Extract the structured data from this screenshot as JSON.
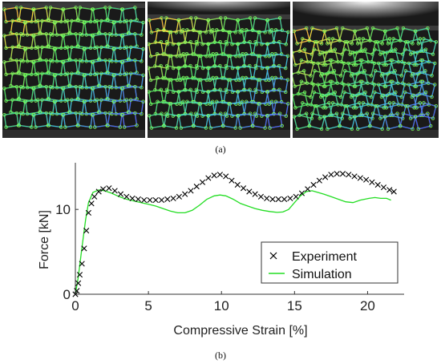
{
  "figure": {
    "caption_a": "(a)",
    "caption_b": "(b)",
    "photo_icons": [
      "lattice-photo-initial",
      "lattice-photo-mid",
      "lattice-photo-deformed"
    ]
  },
  "chart_data": {
    "type": "line",
    "xlabel": "Compressive Strain [%]",
    "ylabel": "Force [kN]",
    "xlim": [
      0,
      22.5
    ],
    "ylim": [
      0,
      15.5
    ],
    "xticks": [
      0,
      5,
      10,
      15,
      20
    ],
    "yticks": [
      0,
      10
    ],
    "grid": false,
    "legend": "bottom-right",
    "series": [
      {
        "name": "Experiment",
        "marker": "x",
        "color": "#000000",
        "points": [
          [
            0.0,
            0.0
          ],
          [
            0.1,
            0.4
          ],
          [
            0.2,
            1.3
          ],
          [
            0.3,
            2.3
          ],
          [
            0.45,
            3.6
          ],
          [
            0.6,
            5.4
          ],
          [
            0.75,
            7.5
          ],
          [
            0.9,
            9.6
          ],
          [
            1.1,
            10.7
          ],
          [
            1.3,
            11.5
          ],
          [
            1.6,
            12.1
          ],
          [
            1.9,
            12.4
          ],
          [
            2.3,
            12.5
          ],
          [
            2.7,
            12.2
          ],
          [
            3.1,
            11.8
          ],
          [
            3.5,
            11.5
          ],
          [
            3.9,
            11.3
          ],
          [
            4.3,
            11.2
          ],
          [
            4.7,
            11.1
          ],
          [
            5.1,
            11.1
          ],
          [
            5.5,
            11.1
          ],
          [
            5.9,
            11.1
          ],
          [
            6.3,
            11.2
          ],
          [
            6.7,
            11.3
          ],
          [
            7.1,
            11.5
          ],
          [
            7.5,
            11.8
          ],
          [
            7.9,
            12.2
          ],
          [
            8.3,
            12.7
          ],
          [
            8.7,
            13.2
          ],
          [
            9.1,
            13.7
          ],
          [
            9.5,
            14.0
          ],
          [
            9.9,
            14.1
          ],
          [
            10.3,
            13.9
          ],
          [
            10.7,
            13.4
          ],
          [
            11.1,
            12.9
          ],
          [
            11.5,
            12.5
          ],
          [
            11.9,
            12.1
          ],
          [
            12.3,
            11.8
          ],
          [
            12.7,
            11.5
          ],
          [
            13.1,
            11.3
          ],
          [
            13.5,
            11.2
          ],
          [
            13.9,
            11.2
          ],
          [
            14.3,
            11.2
          ],
          [
            14.7,
            11.3
          ],
          [
            15.1,
            11.5
          ],
          [
            15.5,
            11.9
          ],
          [
            15.9,
            12.4
          ],
          [
            16.3,
            12.9
          ],
          [
            16.7,
            13.4
          ],
          [
            17.1,
            13.8
          ],
          [
            17.5,
            14.1
          ],
          [
            17.9,
            14.2
          ],
          [
            18.3,
            14.2
          ],
          [
            18.7,
            14.1
          ],
          [
            19.1,
            13.9
          ],
          [
            19.5,
            13.7
          ],
          [
            19.9,
            13.5
          ],
          [
            20.3,
            13.2
          ],
          [
            20.7,
            12.9
          ],
          [
            21.1,
            12.6
          ],
          [
            21.5,
            12.3
          ],
          [
            21.8,
            12.1
          ]
        ]
      },
      {
        "name": "Simulation",
        "marker": "none",
        "color": "#22dd22",
        "points": [
          [
            0.0,
            0.0
          ],
          [
            0.2,
            2.0
          ],
          [
            0.45,
            5.5
          ],
          [
            0.7,
            8.8
          ],
          [
            0.9,
            10.8
          ],
          [
            1.2,
            12.0
          ],
          [
            1.6,
            12.3
          ],
          [
            2.0,
            12.2
          ],
          [
            2.5,
            11.9
          ],
          [
            3.0,
            11.5
          ],
          [
            3.5,
            11.2
          ],
          [
            4.0,
            11.0
          ],
          [
            4.5,
            10.8
          ],
          [
            5.0,
            10.6
          ],
          [
            5.5,
            10.4
          ],
          [
            6.0,
            10.1
          ],
          [
            6.5,
            9.8
          ],
          [
            7.0,
            9.6
          ],
          [
            7.5,
            9.6
          ],
          [
            8.0,
            9.9
          ],
          [
            8.5,
            10.5
          ],
          [
            9.0,
            11.2
          ],
          [
            9.5,
            11.6
          ],
          [
            9.9,
            11.7
          ],
          [
            10.3,
            11.6
          ],
          [
            10.8,
            11.2
          ],
          [
            11.3,
            10.7
          ],
          [
            11.8,
            10.4
          ],
          [
            12.3,
            10.1
          ],
          [
            12.8,
            9.9
          ],
          [
            13.3,
            9.75
          ],
          [
            13.8,
            9.65
          ],
          [
            14.2,
            9.7
          ],
          [
            14.6,
            10.0
          ],
          [
            15.0,
            10.8
          ],
          [
            15.4,
            11.6
          ],
          [
            15.8,
            12.1
          ],
          [
            16.2,
            12.2
          ],
          [
            16.6,
            12.0
          ],
          [
            17.0,
            11.8
          ],
          [
            17.5,
            11.5
          ],
          [
            18.0,
            11.2
          ],
          [
            18.5,
            10.9
          ],
          [
            19.0,
            10.8
          ],
          [
            19.5,
            11.1
          ],
          [
            19.8,
            11.2
          ],
          [
            20.1,
            11.3
          ],
          [
            20.5,
            11.4
          ],
          [
            20.9,
            11.3
          ],
          [
            21.3,
            11.3
          ],
          [
            21.6,
            11.1
          ]
        ]
      }
    ]
  }
}
